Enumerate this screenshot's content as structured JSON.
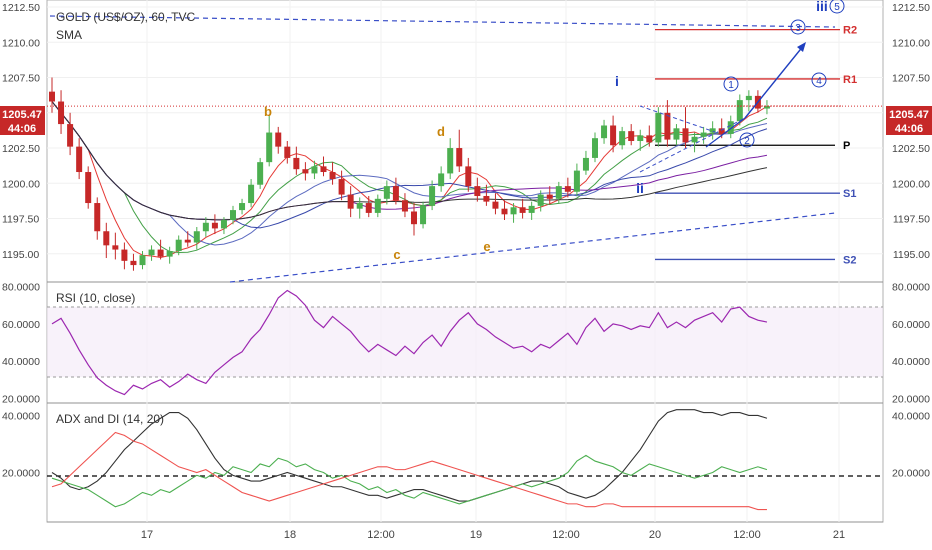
{
  "header": {
    "symbol_title": "GOLD (US$/OZ), 60, TVC",
    "indicator": "SMA",
    "price_tag": "1205.47",
    "countdown_tag": "44:06"
  },
  "panes": {
    "rsi_label": "RSI (10, close)",
    "adx_label": "ADX and DI (14, 20)"
  },
  "colors": {
    "up_candle": "#4caf50",
    "down_candle": "#c62828",
    "pivot_r": "#d32f2f",
    "pivot_s": "#3f51b5",
    "pivot_p": "#000000",
    "wave_blue": "#1f3fbf",
    "wave_orange": "#c8840a",
    "rsi_line": "#9c27b0",
    "adx_line": "#333333",
    "di_plus": "#4caf50",
    "di_minus": "#ef5350",
    "price_tag_bg": "#c62828"
  },
  "chart_data": [
    {
      "type": "candlestick",
      "title": "GOLD (US$/OZ), 60, TVC",
      "ylim": [
        1193.0,
        1213.0
      ],
      "y_ticks": [
        "1212.50",
        "1210.00",
        "1207.50",
        "1205.00",
        "1202.50",
        "1200.00",
        "1197.50",
        "1195.00"
      ],
      "x_ticks": [
        "17",
        "18",
        "12:00",
        "19",
        "12:00",
        "20",
        "12:00",
        "21"
      ],
      "last_price": 1205.47,
      "pivots": [
        {
          "name": "R2",
          "value": 1210.9
        },
        {
          "name": "R1",
          "value": 1207.4
        },
        {
          "name": "P",
          "value": 1202.7
        },
        {
          "name": "S1",
          "value": 1199.3
        },
        {
          "name": "S2",
          "value": 1194.6
        }
      ],
      "wave_labels": [
        "b",
        "c",
        "d",
        "e",
        "i",
        "ii",
        "1",
        "2",
        "3",
        "4",
        "5",
        "iii"
      ],
      "candles": [
        {
          "o": 1206.5,
          "h": 1207.5,
          "l": 1205.0,
          "c": 1205.8
        },
        {
          "o": 1205.8,
          "h": 1206.6,
          "l": 1203.5,
          "c": 1204.2
        },
        {
          "o": 1204.2,
          "h": 1205.0,
          "l": 1202.0,
          "c": 1202.6
        },
        {
          "o": 1202.6,
          "h": 1203.2,
          "l": 1200.3,
          "c": 1200.8
        },
        {
          "o": 1200.8,
          "h": 1201.2,
          "l": 1198.2,
          "c": 1198.6
        },
        {
          "o": 1198.6,
          "h": 1199.0,
          "l": 1196.0,
          "c": 1196.6
        },
        {
          "o": 1196.6,
          "h": 1197.2,
          "l": 1194.7,
          "c": 1195.6
        },
        {
          "o": 1195.6,
          "h": 1196.5,
          "l": 1194.6,
          "c": 1195.3
        },
        {
          "o": 1195.3,
          "h": 1195.8,
          "l": 1193.9,
          "c": 1194.5
        },
        {
          "o": 1194.5,
          "h": 1195.0,
          "l": 1193.8,
          "c": 1194.2
        },
        {
          "o": 1194.2,
          "h": 1195.2,
          "l": 1193.9,
          "c": 1194.9
        },
        {
          "o": 1194.9,
          "h": 1195.6,
          "l": 1194.5,
          "c": 1195.3
        },
        {
          "o": 1195.3,
          "h": 1196.0,
          "l": 1194.6,
          "c": 1194.8
        },
        {
          "o": 1194.8,
          "h": 1195.5,
          "l": 1194.3,
          "c": 1195.2
        },
        {
          "o": 1195.2,
          "h": 1196.3,
          "l": 1194.9,
          "c": 1196.0
        },
        {
          "o": 1196.0,
          "h": 1196.6,
          "l": 1195.5,
          "c": 1195.8
        },
        {
          "o": 1195.8,
          "h": 1196.9,
          "l": 1195.3,
          "c": 1196.6
        },
        {
          "o": 1196.6,
          "h": 1197.6,
          "l": 1196.2,
          "c": 1197.2
        },
        {
          "o": 1197.2,
          "h": 1197.8,
          "l": 1196.4,
          "c": 1196.8
        },
        {
          "o": 1196.8,
          "h": 1197.6,
          "l": 1196.4,
          "c": 1197.4
        },
        {
          "o": 1197.4,
          "h": 1198.4,
          "l": 1197.1,
          "c": 1198.1
        },
        {
          "o": 1198.1,
          "h": 1198.9,
          "l": 1197.8,
          "c": 1198.6
        },
        {
          "o": 1198.6,
          "h": 1200.3,
          "l": 1198.3,
          "c": 1199.9
        },
        {
          "o": 1199.9,
          "h": 1201.8,
          "l": 1199.6,
          "c": 1201.5
        },
        {
          "o": 1201.5,
          "h": 1204.8,
          "l": 1201.2,
          "c": 1203.6
        },
        {
          "o": 1203.6,
          "h": 1204.0,
          "l": 1202.1,
          "c": 1202.6
        },
        {
          "o": 1202.6,
          "h": 1203.0,
          "l": 1201.4,
          "c": 1201.8
        },
        {
          "o": 1201.8,
          "h": 1202.6,
          "l": 1200.6,
          "c": 1201.0
        },
        {
          "o": 1201.0,
          "h": 1201.5,
          "l": 1200.2,
          "c": 1200.7
        },
        {
          "o": 1200.7,
          "h": 1201.6,
          "l": 1200.3,
          "c": 1201.2
        },
        {
          "o": 1201.2,
          "h": 1201.9,
          "l": 1200.5,
          "c": 1200.8
        },
        {
          "o": 1200.8,
          "h": 1201.5,
          "l": 1199.9,
          "c": 1200.3
        },
        {
          "o": 1200.3,
          "h": 1200.9,
          "l": 1198.8,
          "c": 1199.2
        },
        {
          "o": 1199.2,
          "h": 1199.8,
          "l": 1197.6,
          "c": 1198.2
        },
        {
          "o": 1198.2,
          "h": 1199.0,
          "l": 1197.5,
          "c": 1198.6
        },
        {
          "o": 1198.6,
          "h": 1199.1,
          "l": 1197.6,
          "c": 1197.9
        },
        {
          "o": 1197.9,
          "h": 1199.2,
          "l": 1197.6,
          "c": 1198.9
        },
        {
          "o": 1198.9,
          "h": 1200.2,
          "l": 1198.5,
          "c": 1199.8
        },
        {
          "o": 1199.8,
          "h": 1200.4,
          "l": 1198.5,
          "c": 1198.8
        },
        {
          "o": 1198.8,
          "h": 1199.3,
          "l": 1197.6,
          "c": 1198.0
        },
        {
          "o": 1198.0,
          "h": 1198.6,
          "l": 1196.3,
          "c": 1197.1
        },
        {
          "o": 1197.1,
          "h": 1198.7,
          "l": 1196.8,
          "c": 1198.4
        },
        {
          "o": 1198.4,
          "h": 1200.2,
          "l": 1198.1,
          "c": 1199.8
        },
        {
          "o": 1199.8,
          "h": 1201.2,
          "l": 1199.4,
          "c": 1200.7
        },
        {
          "o": 1200.7,
          "h": 1203.2,
          "l": 1200.3,
          "c": 1202.5
        },
        {
          "o": 1202.5,
          "h": 1203.8,
          "l": 1200.8,
          "c": 1201.2
        },
        {
          "o": 1201.2,
          "h": 1201.8,
          "l": 1199.4,
          "c": 1199.8
        },
        {
          "o": 1199.8,
          "h": 1200.4,
          "l": 1198.7,
          "c": 1199.1
        },
        {
          "o": 1199.1,
          "h": 1199.9,
          "l": 1198.4,
          "c": 1198.7
        },
        {
          "o": 1198.7,
          "h": 1199.3,
          "l": 1197.8,
          "c": 1198.2
        },
        {
          "o": 1198.2,
          "h": 1198.8,
          "l": 1197.4,
          "c": 1197.8
        },
        {
          "o": 1197.8,
          "h": 1198.6,
          "l": 1197.2,
          "c": 1198.3
        },
        {
          "o": 1198.3,
          "h": 1198.9,
          "l": 1197.5,
          "c": 1197.9
        },
        {
          "o": 1197.9,
          "h": 1198.7,
          "l": 1197.4,
          "c": 1198.4
        },
        {
          "o": 1198.4,
          "h": 1199.5,
          "l": 1198.0,
          "c": 1199.2
        },
        {
          "o": 1199.2,
          "h": 1199.8,
          "l": 1198.5,
          "c": 1198.9
        },
        {
          "o": 1198.9,
          "h": 1200.1,
          "l": 1198.6,
          "c": 1199.8
        },
        {
          "o": 1199.8,
          "h": 1200.4,
          "l": 1199.0,
          "c": 1199.4
        },
        {
          "o": 1199.4,
          "h": 1201.4,
          "l": 1199.1,
          "c": 1200.9
        },
        {
          "o": 1200.9,
          "h": 1202.3,
          "l": 1200.6,
          "c": 1201.8
        },
        {
          "o": 1201.8,
          "h": 1203.6,
          "l": 1201.5,
          "c": 1203.2
        },
        {
          "o": 1203.2,
          "h": 1204.5,
          "l": 1202.8,
          "c": 1204.1
        },
        {
          "o": 1204.1,
          "h": 1204.8,
          "l": 1202.2,
          "c": 1202.7
        },
        {
          "o": 1202.7,
          "h": 1204.0,
          "l": 1202.4,
          "c": 1203.7
        },
        {
          "o": 1203.7,
          "h": 1204.2,
          "l": 1202.7,
          "c": 1203.0
        },
        {
          "o": 1203.0,
          "h": 1203.8,
          "l": 1202.3,
          "c": 1203.4
        },
        {
          "o": 1203.4,
          "h": 1204.1,
          "l": 1202.6,
          "c": 1202.9
        },
        {
          "o": 1202.9,
          "h": 1205.4,
          "l": 1202.6,
          "c": 1205.0
        },
        {
          "o": 1205.0,
          "h": 1205.9,
          "l": 1202.6,
          "c": 1203.1
        },
        {
          "o": 1203.1,
          "h": 1204.2,
          "l": 1202.7,
          "c": 1203.9
        },
        {
          "o": 1203.9,
          "h": 1205.4,
          "l": 1202.5,
          "c": 1202.9
        },
        {
          "o": 1202.9,
          "h": 1203.6,
          "l": 1202.2,
          "c": 1203.3
        },
        {
          "o": 1203.3,
          "h": 1204.0,
          "l": 1202.8,
          "c": 1203.6
        },
        {
          "o": 1203.6,
          "h": 1204.4,
          "l": 1203.1,
          "c": 1203.9
        },
        {
          "o": 1203.9,
          "h": 1204.6,
          "l": 1203.2,
          "c": 1203.5
        },
        {
          "o": 1203.5,
          "h": 1204.8,
          "l": 1203.2,
          "c": 1204.4
        },
        {
          "o": 1204.4,
          "h": 1206.3,
          "l": 1204.1,
          "c": 1205.9
        },
        {
          "o": 1205.9,
          "h": 1206.6,
          "l": 1205.1,
          "c": 1206.2
        },
        {
          "o": 1206.2,
          "h": 1206.6,
          "l": 1205.0,
          "c": 1205.3
        },
        {
          "o": 1205.3,
          "h": 1205.9,
          "l": 1204.9,
          "c": 1205.47
        }
      ]
    },
    {
      "type": "line",
      "title": "RSI (10, close)",
      "ylim": [
        18,
        82
      ],
      "y_ticks": [
        "80.0000",
        "60.0000",
        "40.0000",
        "20.0000"
      ],
      "series": [
        {
          "values": [
            60,
            63,
            55,
            46,
            38,
            31,
            27,
            24,
            22,
            27,
            25,
            28,
            30,
            26,
            29,
            33,
            30,
            28,
            34,
            38,
            42,
            45,
            52,
            57,
            65,
            74,
            78,
            75,
            70,
            62,
            58,
            64,
            60,
            56,
            50,
            45,
            49,
            46,
            43,
            48,
            44,
            50,
            54,
            48,
            56,
            62,
            66,
            60,
            57,
            53,
            50,
            47,
            48,
            45,
            49,
            47,
            51,
            55,
            49,
            58,
            63,
            56,
            60,
            59,
            57,
            59,
            58,
            66,
            58,
            61,
            58,
            62,
            64,
            66,
            61,
            68,
            69,
            64,
            62,
            61
          ]
        }
      ]
    },
    {
      "type": "line",
      "title": "ADX and DI (14, 20)",
      "ylim": [
        3,
        44
      ],
      "y_ticks": [
        "40.0000",
        "20.0000"
      ],
      "series": [
        {
          "values": [
            20,
            18,
            15,
            14,
            15,
            17,
            20,
            24,
            28,
            31,
            34,
            37,
            39,
            41,
            41,
            39,
            35,
            30,
            25,
            21,
            19,
            18,
            17,
            17,
            18,
            19,
            20,
            19,
            18,
            17,
            16,
            15,
            15,
            14,
            13,
            12,
            12,
            11,
            12,
            13,
            14,
            14,
            13,
            12,
            11,
            10,
            10,
            11,
            12,
            13,
            14,
            15,
            16,
            17,
            17,
            16,
            15,
            13,
            12,
            11,
            12,
            14,
            17,
            20,
            24,
            28,
            33,
            38,
            41,
            42,
            42,
            42,
            41,
            41,
            40,
            41,
            41,
            40,
            40,
            39
          ]
        },
        {
          "values": [
            18,
            17,
            16,
            15,
            14,
            12,
            10,
            8,
            9,
            11,
            13,
            12,
            14,
            13,
            15,
            17,
            19,
            18,
            20,
            19,
            22,
            21,
            20,
            23,
            22,
            25,
            24,
            22,
            23,
            21,
            20,
            18,
            19,
            17,
            16,
            14,
            15,
            13,
            14,
            12,
            11,
            13,
            12,
            11,
            10,
            9,
            10,
            11,
            12,
            13,
            14,
            15,
            16,
            15,
            16,
            17,
            18,
            20,
            24,
            26,
            24,
            23,
            22,
            20,
            19,
            21,
            23,
            22,
            21,
            20,
            19,
            18,
            19,
            20,
            22,
            21,
            20,
            21,
            22,
            21
          ]
        },
        {
          "values": [
            15,
            16,
            19,
            22,
            25,
            28,
            31,
            34,
            33,
            31,
            30,
            28,
            26,
            24,
            22,
            21,
            20,
            21,
            19,
            17,
            15,
            13,
            12,
            11,
            10,
            11,
            12,
            13,
            14,
            15,
            16,
            17,
            18,
            19,
            20,
            21,
            22,
            22,
            21,
            21,
            22,
            23,
            24,
            23,
            22,
            21,
            20,
            19,
            18,
            17,
            16,
            15,
            14,
            13,
            12,
            11,
            10,
            9,
            9,
            8,
            8,
            9,
            9,
            8,
            8,
            8,
            8,
            8,
            8,
            8,
            8,
            8,
            8,
            8,
            8,
            8,
            8,
            8,
            7,
            7
          ]
        }
      ]
    }
  ]
}
